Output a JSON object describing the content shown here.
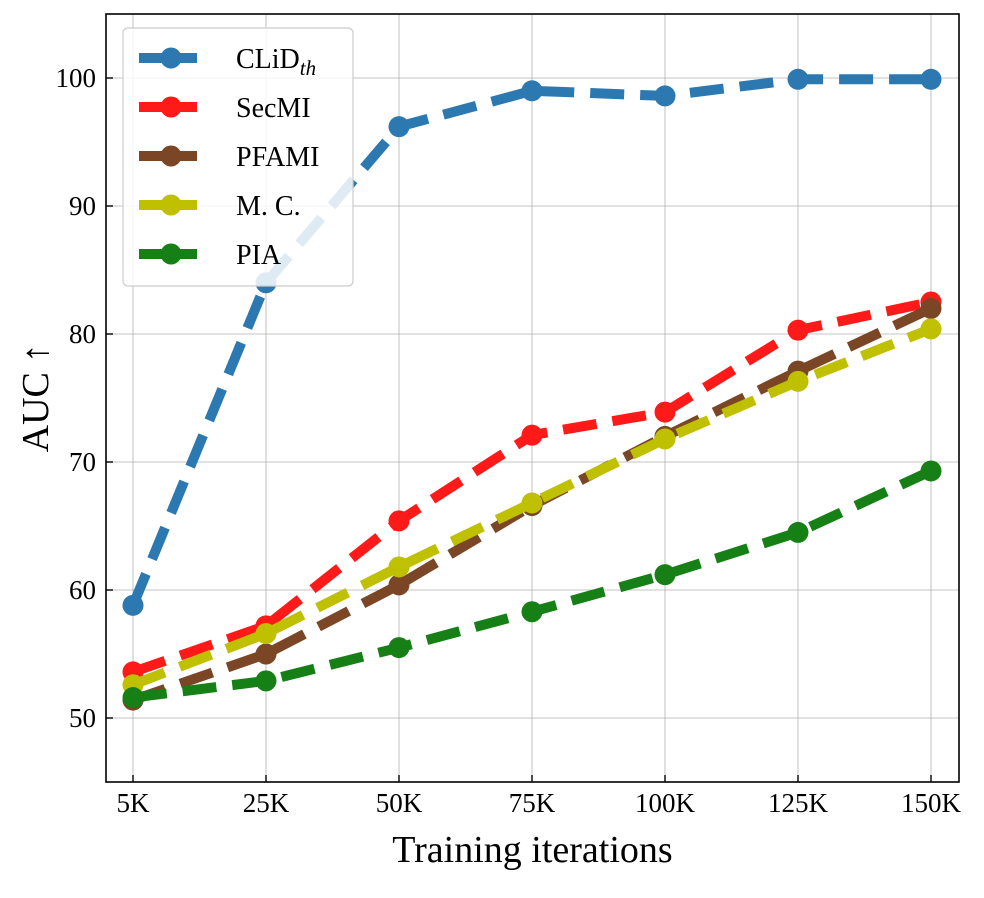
{
  "chart_data": {
    "type": "line",
    "title": "",
    "xlabel": "Training iterations",
    "ylabel": "AUC ↑",
    "categories": [
      "5K",
      "25K",
      "50K",
      "75K",
      "100K",
      "125K",
      "150K"
    ],
    "ylim": [
      45,
      105
    ],
    "yticks": [
      50,
      60,
      70,
      80,
      90,
      100
    ],
    "grid": true,
    "legend_position": "top-left",
    "series": [
      {
        "name": "CLiD",
        "name_subscript": "th",
        "color": "#2c78b0",
        "values": [
          58.8,
          84.0,
          96.2,
          99.0,
          98.6,
          99.9,
          99.9
        ]
      },
      {
        "name": "SecMI",
        "color": "#ff1a1a",
        "values": [
          53.6,
          57.2,
          65.4,
          72.1,
          73.9,
          80.3,
          82.5
        ]
      },
      {
        "name": "PFAMI",
        "color": "#7a4626",
        "values": [
          51.4,
          55.0,
          60.4,
          66.6,
          72.0,
          77.1,
          82.0
        ]
      },
      {
        "name": "M. C.",
        "color": "#bfc000",
        "values": [
          52.6,
          56.6,
          61.8,
          66.8,
          71.8,
          76.3,
          80.4
        ]
      },
      {
        "name": "PIA",
        "color": "#168016",
        "values": [
          51.6,
          52.9,
          55.5,
          58.3,
          61.2,
          64.5,
          69.3
        ]
      }
    ]
  }
}
